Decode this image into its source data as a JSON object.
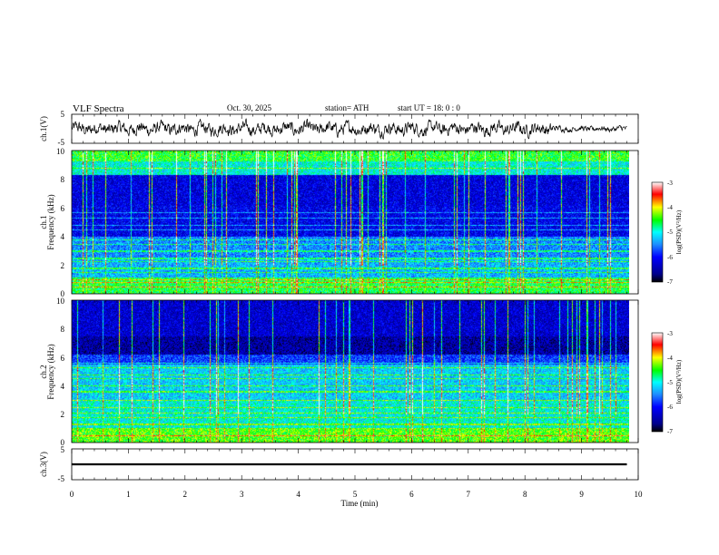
{
  "header": {
    "title": "VLF  Spectra",
    "date": "Oct. 30, 2025",
    "station": "station= ATH",
    "start_ut": "start  UT  =    18: 0   : 0"
  },
  "colors": {
    "waveform": "#000000",
    "colormap": [
      "#000000",
      "#00008b",
      "#0000ff",
      "#1e90ff",
      "#00ffff",
      "#00ff00",
      "#ffff00",
      "#ff0000",
      "#ffffff"
    ]
  },
  "chart_data": [
    {
      "type": "line",
      "name": "ch1-waveform",
      "ylabel": "ch.1(V)",
      "yticks": [
        "5",
        "-5"
      ],
      "ylim": [
        -5,
        5
      ],
      "xlim": [
        0,
        10
      ],
      "data_end_min": 9.8,
      "description_of_series": "noisy VLF waveform, amplitude roughly ±2 V, quieter near 8.5-9.8 min"
    },
    {
      "type": "heatmap",
      "name": "ch1-spectrogram",
      "ylabel": "ch.1\nFrequency  (kHz)",
      "yticks": [
        "0",
        "2",
        "4",
        "6",
        "8",
        "10"
      ],
      "ylim": [
        0,
        10
      ],
      "xlim": [
        0,
        10
      ],
      "data_end_min": 9.8,
      "lines_khz": [
        0.5,
        0.8,
        1.0,
        1.5,
        1.8,
        2.3,
        2.5,
        3.0,
        3.5,
        3.8,
        4.5,
        4.8,
        5.3,
        5.7,
        8.8
      ],
      "colorbar": {
        "label": "log(PSD)(V²/Hz)",
        "ticks": [
          "-3",
          "-4",
          "-5",
          "-6",
          "-7"
        ],
        "range": [
          -7,
          -3
        ]
      }
    },
    {
      "type": "heatmap",
      "name": "ch2-spectrogram",
      "ylabel": "ch.2\nFrequency  (kHz)",
      "yticks": [
        "0",
        "2",
        "4",
        "6",
        "8",
        "10"
      ],
      "ylim": [
        0,
        10
      ],
      "xlim": [
        0,
        10
      ],
      "data_end_min": 9.8,
      "lines_khz": [
        0.5,
        1.0,
        1.3,
        1.8,
        2.1,
        2.5,
        3.0,
        3.6,
        4.0,
        4.5,
        4.8,
        5.3,
        5.6
      ],
      "colorbar": {
        "label": "log(PSD)(V²/Hz)",
        "ticks": [
          "-3",
          "-4",
          "-5",
          "-6",
          "-7"
        ],
        "range": [
          -7,
          -3
        ]
      }
    },
    {
      "type": "line",
      "name": "ch3-waveform",
      "ylabel": "ch.3(V)",
      "yticks": [
        "5",
        "-5"
      ],
      "ylim": [
        -5,
        5
      ],
      "xlim": [
        0,
        10
      ],
      "data_end_min": 9.8,
      "constant_value_v": 0
    }
  ],
  "x_axis": {
    "label": "Time  (min)",
    "ticks": [
      "0",
      "1",
      "2",
      "3",
      "4",
      "5",
      "6",
      "7",
      "8",
      "9",
      "10"
    ]
  }
}
